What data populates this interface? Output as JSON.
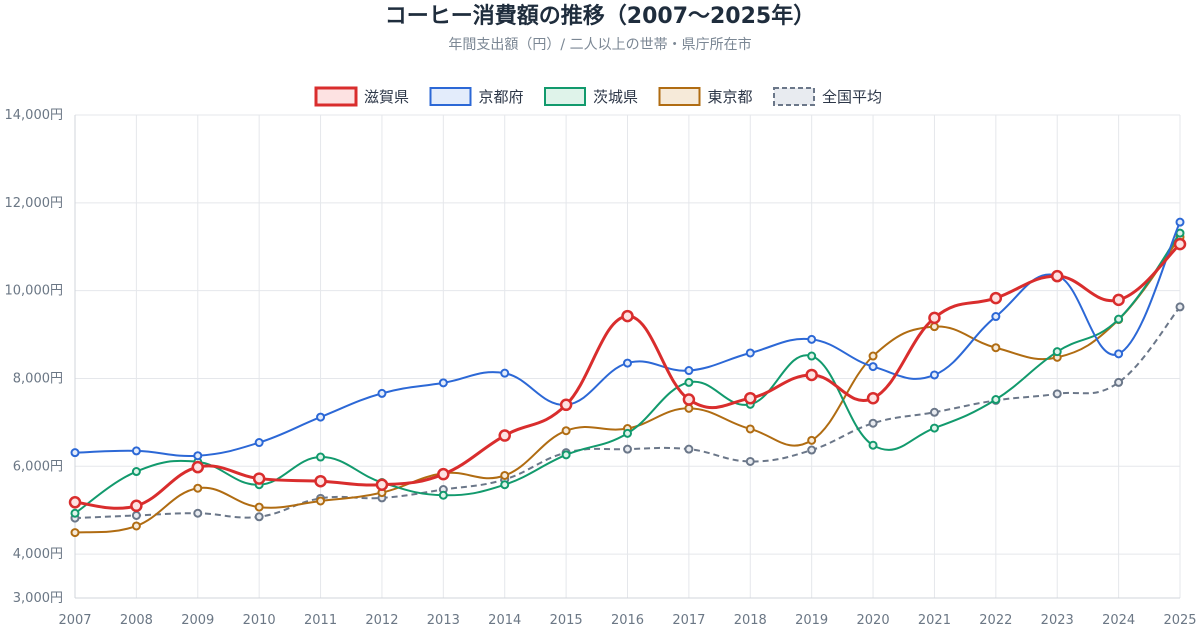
{
  "chart_data": {
    "type": "line",
    "title": "コーヒー消費額の推移（2007〜2025年）",
    "subtitle": "年間支出額（円）/ 二人以上の世帯・県庁所在市",
    "categories": [
      "2007",
      "2008",
      "2009",
      "2010",
      "2011",
      "2012",
      "2013",
      "2014",
      "2015",
      "2016",
      "2017",
      "2018",
      "2019",
      "2020",
      "2021",
      "2022",
      "2023",
      "2024",
      "2025"
    ],
    "y_ticks": [
      3000,
      4000,
      6000,
      8000,
      10000,
      12000,
      14000
    ],
    "y_tick_labels": [
      "3,000円",
      "4,000円",
      "6,000円",
      "8,000円",
      "10,000円",
      "12,000円",
      "14,000円"
    ],
    "ylim": [
      3000,
      14000
    ],
    "grid": true,
    "legend_position": "top",
    "series": [
      {
        "name": "滋賀県",
        "color": "#d92d2d",
        "fill": "#fde2e2",
        "dashed": false,
        "emphasis": true,
        "values": [
          5180,
          5100,
          5980,
          5720,
          5660,
          5580,
          5820,
          6700,
          7400,
          9420,
          7520,
          7550,
          8080,
          7550,
          9380,
          9830,
          10330,
          9790,
          11060
        ]
      },
      {
        "name": "京都府",
        "color": "#2c68d6",
        "fill": "#e3ecfb",
        "dashed": false,
        "emphasis": false,
        "values": [
          6310,
          6350,
          6240,
          6540,
          7120,
          7660,
          7900,
          8120,
          7400,
          8350,
          8180,
          8580,
          8890,
          8270,
          8080,
          9410,
          10340,
          8560,
          11560
        ]
      },
      {
        "name": "茨城県",
        "color": "#129a6d",
        "fill": "#dff3ea",
        "dashed": false,
        "emphasis": false,
        "values": [
          4930,
          5880,
          6100,
          5580,
          6210,
          5630,
          5340,
          5580,
          6260,
          6750,
          7910,
          7410,
          8510,
          6480,
          6870,
          7520,
          8610,
          9350,
          11310
        ]
      },
      {
        "name": "東京都",
        "color": "#b06c12",
        "fill": "#f6ead9",
        "dashed": false,
        "emphasis": false,
        "values": [
          4490,
          4640,
          5500,
          5070,
          5210,
          5400,
          5840,
          5790,
          6810,
          6860,
          7320,
          6850,
          6590,
          8510,
          9180,
          8700,
          8480,
          9340,
          11220
        ]
      },
      {
        "name": "全国平均",
        "color": "#6b7789",
        "fill": "#e8ebf0",
        "dashed": true,
        "emphasis": false,
        "values": [
          4820,
          4880,
          4930,
          4850,
          5270,
          5280,
          5470,
          5700,
          6310,
          6390,
          6390,
          6110,
          6370,
          6980,
          7230,
          7500,
          7650,
          7910,
          9630
        ]
      }
    ]
  }
}
